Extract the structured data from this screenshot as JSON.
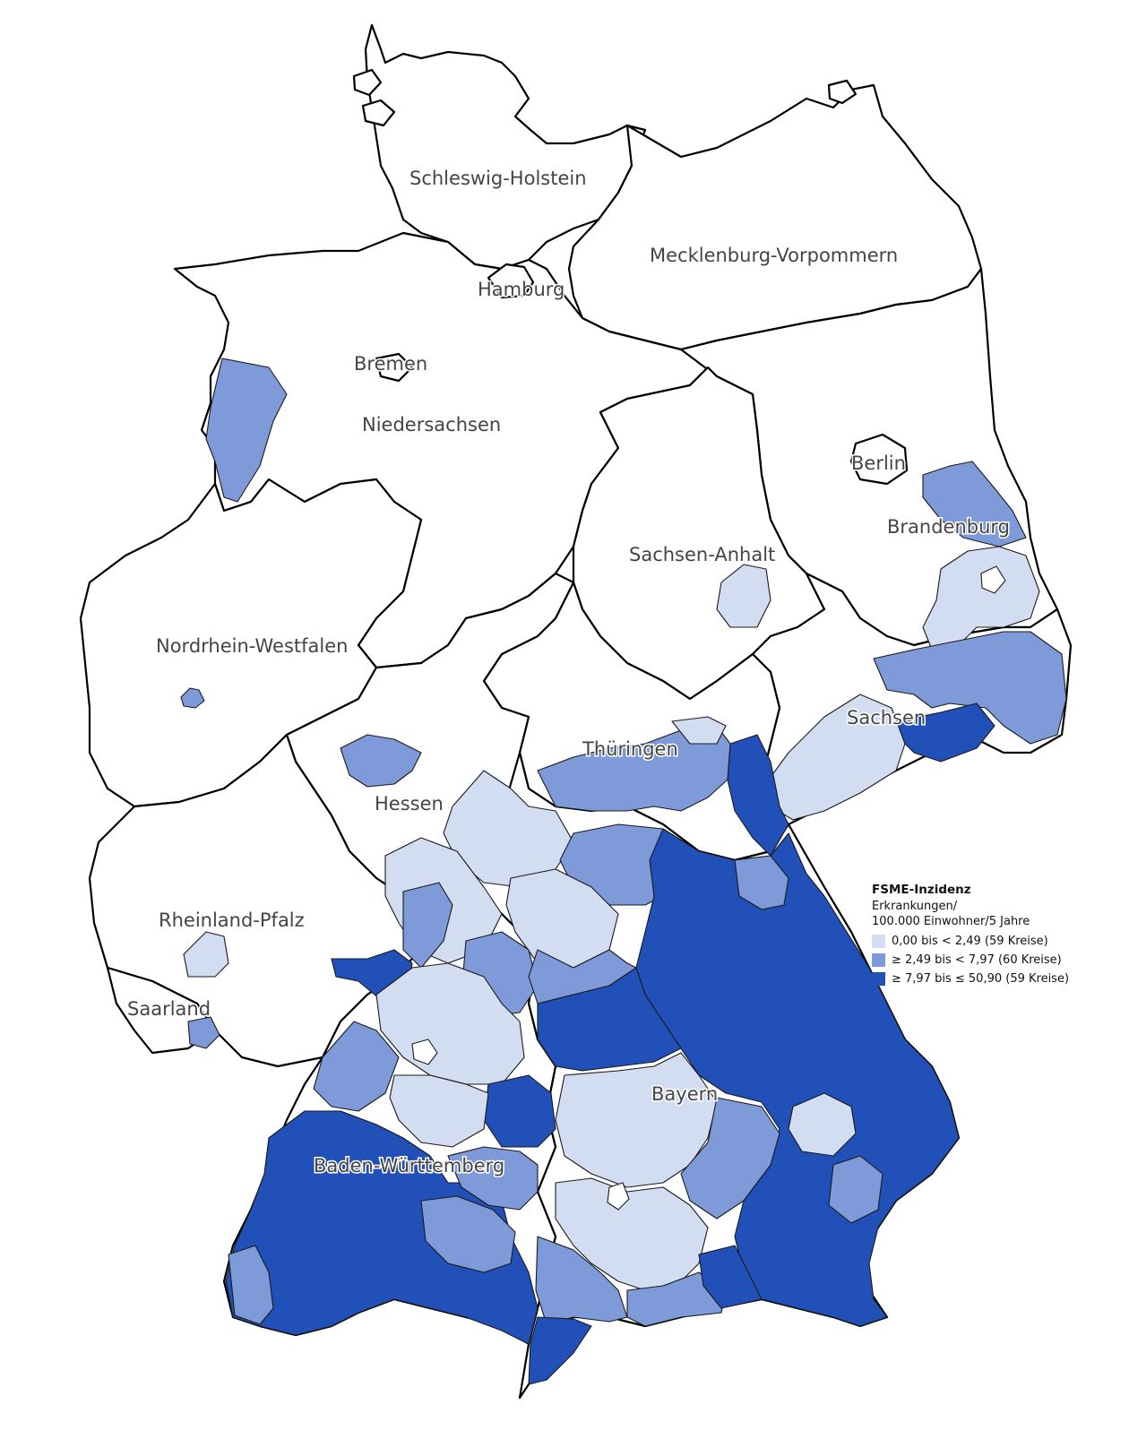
{
  "colors": {
    "none": "#ffffff",
    "low": "#d2ddf2",
    "mid": "#7e9ad8",
    "high": "#2050b8",
    "border": "#000000"
  },
  "states": [
    {
      "id": "schleswig-holstein",
      "label": "Schleswig-Holstein"
    },
    {
      "id": "mecklenburg-vorpommern",
      "label": "Mecklenburg-Vorpommern"
    },
    {
      "id": "hamburg",
      "label": "Hamburg"
    },
    {
      "id": "bremen",
      "label": "Bremen"
    },
    {
      "id": "niedersachsen",
      "label": "Niedersachsen"
    },
    {
      "id": "berlin",
      "label": "Berlin"
    },
    {
      "id": "brandenburg",
      "label": "Brandenburg"
    },
    {
      "id": "sachsen-anhalt",
      "label": "Sachsen-Anhalt"
    },
    {
      "id": "nordrhein-westfalen",
      "label": "Nordrhein-Westfalen"
    },
    {
      "id": "sachsen",
      "label": "Sachsen"
    },
    {
      "id": "thueringen",
      "label": "Thüringen"
    },
    {
      "id": "hessen",
      "label": "Hessen"
    },
    {
      "id": "rheinland-pfalz",
      "label": "Rheinland-Pfalz"
    },
    {
      "id": "saarland",
      "label": "Saarland"
    },
    {
      "id": "bayern",
      "label": "Bayern"
    },
    {
      "id": "baden-wuerttemberg",
      "label": "Baden-Württemberg"
    }
  ],
  "legend": {
    "title": "FSME-Inzidenz",
    "subtitle_line1": "Erkrankungen/",
    "subtitle_line2": "100.000 Einwohner/5 Jahre",
    "classes": [
      {
        "level": "low",
        "label": "0,00 bis < 2,49 (59 Kreise)"
      },
      {
        "level": "mid",
        "label": "≥ 2,49 bis < 7,97 (60 Kreise)"
      },
      {
        "level": "high",
        "label": "≥ 7,97 bis ≤ 50,90 (59 Kreise)"
      }
    ]
  }
}
